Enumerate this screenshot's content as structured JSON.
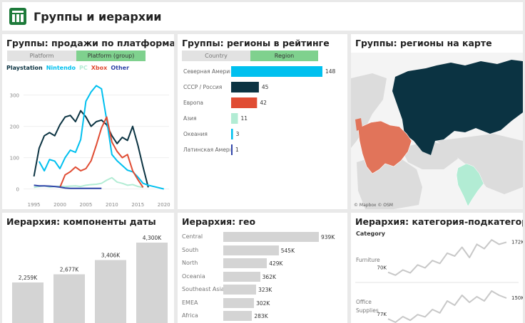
{
  "header": {
    "title": "Группы и иерархии",
    "logo_icon": "excel-like-grid-icon"
  },
  "colors": {
    "playstation": "#0b3342",
    "nintendo": "#00c0ef",
    "pc": "#b2ecd4",
    "xbox": "#e04c33",
    "other": "#2f44a8",
    "toggle_on": "#7fd18e",
    "toggle_off": "#e2e2e2",
    "bar_grey": "#d4d4d4"
  },
  "panel_platforms": {
    "title": "Группы: продажи по платформам",
    "toggle_left": "Platform",
    "toggle_right": "Platform (group)",
    "legend": [
      "Playstation",
      "Nintendo",
      "PC",
      "Xbox",
      "Other"
    ]
  },
  "panel_regions": {
    "title": "Группы: регионы в рейтинге",
    "toggle_left": "Country",
    "toggle_right": "Region"
  },
  "panel_map": {
    "title": "Группы: регионы на карте",
    "attribution": "© Mapbox  © OSM"
  },
  "panel_date": {
    "title": "Иерархия: компоненты даты"
  },
  "panel_geo": {
    "title": "Иерархия: гео"
  },
  "panel_category": {
    "title": "Иерархия: категория-подкатегория",
    "column_header": "Category"
  },
  "chart_data": [
    {
      "id": "platform_sales",
      "type": "line",
      "title": "Группы: продажи по платформам",
      "x": [
        1994,
        1995,
        1996,
        1997,
        1998,
        1999,
        2000,
        2001,
        2002,
        2003,
        2004,
        2005,
        2006,
        2007,
        2008,
        2009,
        2010,
        2011,
        2012,
        2013,
        2014,
        2015,
        2016,
        2017,
        2018,
        2019,
        2020
      ],
      "xticks": [
        1995,
        2000,
        2005,
        2010,
        2015,
        2020
      ],
      "yticks": [
        0,
        100,
        200,
        300
      ],
      "xlim": [
        1993,
        2021
      ],
      "ylim": [
        -10,
        340
      ],
      "series": [
        {
          "name": "Playstation",
          "color": "#0b3342",
          "x": [
            1995,
            1996,
            1997,
            1998,
            1999,
            2000,
            2001,
            2002,
            2003,
            2004,
            2005,
            2006,
            2007,
            2008,
            2009,
            2010,
            2011,
            2012,
            2013,
            2014,
            2015,
            2016,
            2017
          ],
          "values": [
            40,
            130,
            170,
            180,
            170,
            205,
            230,
            235,
            215,
            250,
            230,
            200,
            215,
            220,
            205,
            170,
            145,
            165,
            155,
            200,
            140,
            70,
            5
          ]
        },
        {
          "name": "Nintendo",
          "color": "#00c0ef",
          "x": [
            1996,
            1997,
            1998,
            1999,
            2000,
            2001,
            2002,
            2003,
            2004,
            2005,
            2006,
            2007,
            2008,
            2009,
            2010,
            2011,
            2012,
            2013,
            2014,
            2015,
            2016,
            2017,
            2018,
            2019,
            2020
          ],
          "values": [
            88,
            58,
            94,
            89,
            65,
            100,
            124,
            117,
            158,
            280,
            310,
            330,
            320,
            220,
            110,
            90,
            75,
            60,
            55,
            38,
            18,
            12,
            8,
            4,
            0
          ]
        },
        {
          "name": "PC",
          "color": "#b2ecd4",
          "x": [
            1995,
            1996,
            1997,
            1998,
            1999,
            2000,
            2001,
            2002,
            2003,
            2004,
            2005,
            2006,
            2007,
            2008,
            2009,
            2010,
            2011,
            2012,
            2013,
            2014,
            2015,
            2016
          ],
          "values": [
            5,
            8,
            10,
            6,
            8,
            9,
            8,
            9,
            10,
            8,
            12,
            14,
            15,
            18,
            28,
            36,
            22,
            18,
            12,
            14,
            8,
            5
          ]
        },
        {
          "name": "Xbox",
          "color": "#e04c33",
          "x": [
            2000,
            2001,
            2002,
            2003,
            2004,
            2005,
            2006,
            2007,
            2008,
            2009,
            2010,
            2011,
            2012,
            2013,
            2014,
            2015,
            2016
          ],
          "values": [
            5,
            45,
            55,
            70,
            58,
            65,
            90,
            140,
            195,
            230,
            150,
            120,
            100,
            110,
            58,
            30,
            5
          ]
        },
        {
          "name": "Other",
          "color": "#2f44a8",
          "x": [
            1995,
            1996,
            1997,
            1998,
            1999,
            2000,
            2001,
            2002,
            2003,
            2004,
            2005,
            2006,
            2007,
            2008
          ],
          "values": [
            12,
            10,
            10,
            9,
            8,
            6,
            3,
            2,
            2,
            2,
            2,
            2,
            2,
            2
          ]
        }
      ]
    },
    {
      "id": "region_rank",
      "type": "bar",
      "title": "Группы: регионы в рейтинге",
      "categories": [
        "Северная Америка",
        "СССР / Россия",
        "Европа",
        "Азия",
        "Океания",
        "Латинская Америка"
      ],
      "values": [
        148,
        45,
        42,
        11,
        3,
        1
      ],
      "colors": [
        "#00c0ef",
        "#0b3342",
        "#e04c33",
        "#b2ecd4",
        "#00c0ef",
        "#2f44a8"
      ]
    },
    {
      "id": "date_parts",
      "type": "bar",
      "title": "Иерархия: компоненты даты",
      "labels": [
        "2,259K",
        "2,677K",
        "3,406K",
        "4,300K"
      ],
      "values": [
        2259,
        2677,
        3406,
        4300
      ]
    },
    {
      "id": "geo_hierarchy",
      "type": "bar",
      "title": "Иерархия: гео",
      "categories": [
        "Central",
        "South",
        "North",
        "Oceania",
        "Southeast Asia",
        "EMEA",
        "Africa"
      ],
      "labels": [
        "939K",
        "545K",
        "429K",
        "362K",
        "323K",
        "302K",
        "283K"
      ],
      "values": [
        939,
        545,
        429,
        362,
        323,
        302,
        283
      ]
    },
    {
      "id": "category_hierarchy",
      "type": "line",
      "title": "Иерархия: категория-подкатегория",
      "series": [
        {
          "name": "Furniture",
          "start_label": "70K",
          "end_label": "172K",
          "values": [
            70,
            60,
            78,
            68,
            95,
            85,
            110,
            100,
            135,
            125,
            155,
            120,
            165,
            150,
            180,
            165,
            172
          ]
        },
        {
          "name": "Office Supplies",
          "start_label": "77K",
          "end_label": "150K",
          "values": [
            77,
            65,
            85,
            72,
            92,
            84,
            110,
            98,
            140,
            125,
            160,
            135,
            155,
            140,
            175,
            160,
            150
          ]
        }
      ]
    }
  ]
}
